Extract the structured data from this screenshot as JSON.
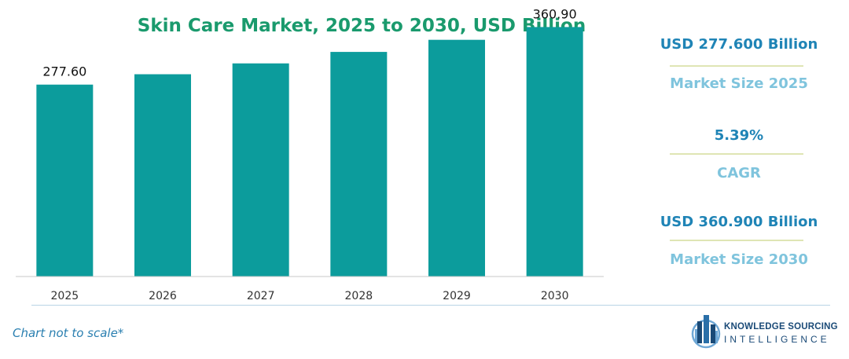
{
  "colors": {
    "bar": "#0c9c9c",
    "title": "#1a9a6d",
    "stat_value": "#1f84b6",
    "stat_label": "#7fc4dd",
    "stat_line": "#dfe5b4",
    "axis": "#c8c8c8",
    "logo": "#1a4a77"
  },
  "chart_data": {
    "type": "bar",
    "title": "Skin Care Market, 2025 to 2030, USD Billion",
    "categories": [
      "2025",
      "2026",
      "2027",
      "2028",
      "2029",
      "2030"
    ],
    "values": [
      277.6,
      292.6,
      308.3,
      324.9,
      342.4,
      360.9
    ],
    "data_labels": [
      "277.60",
      "",
      "",
      "",
      "",
      "360.90"
    ],
    "ylim": [
      0,
      400
    ],
    "xlabel": "",
    "ylabel": "",
    "grid": false
  },
  "stats": [
    {
      "value": "USD 277.600 Billion",
      "label": "Market Size 2025"
    },
    {
      "value": "5.39%",
      "label": "CAGR"
    },
    {
      "value": "USD 360.900 Billion",
      "label": "Market Size 2030"
    }
  ],
  "footnote": "Chart not to scale*",
  "logo": {
    "line1": "KNOWLEDGE SOURCING",
    "line2": "INTELLIGENCE",
    "icon": "building-globe-icon"
  }
}
